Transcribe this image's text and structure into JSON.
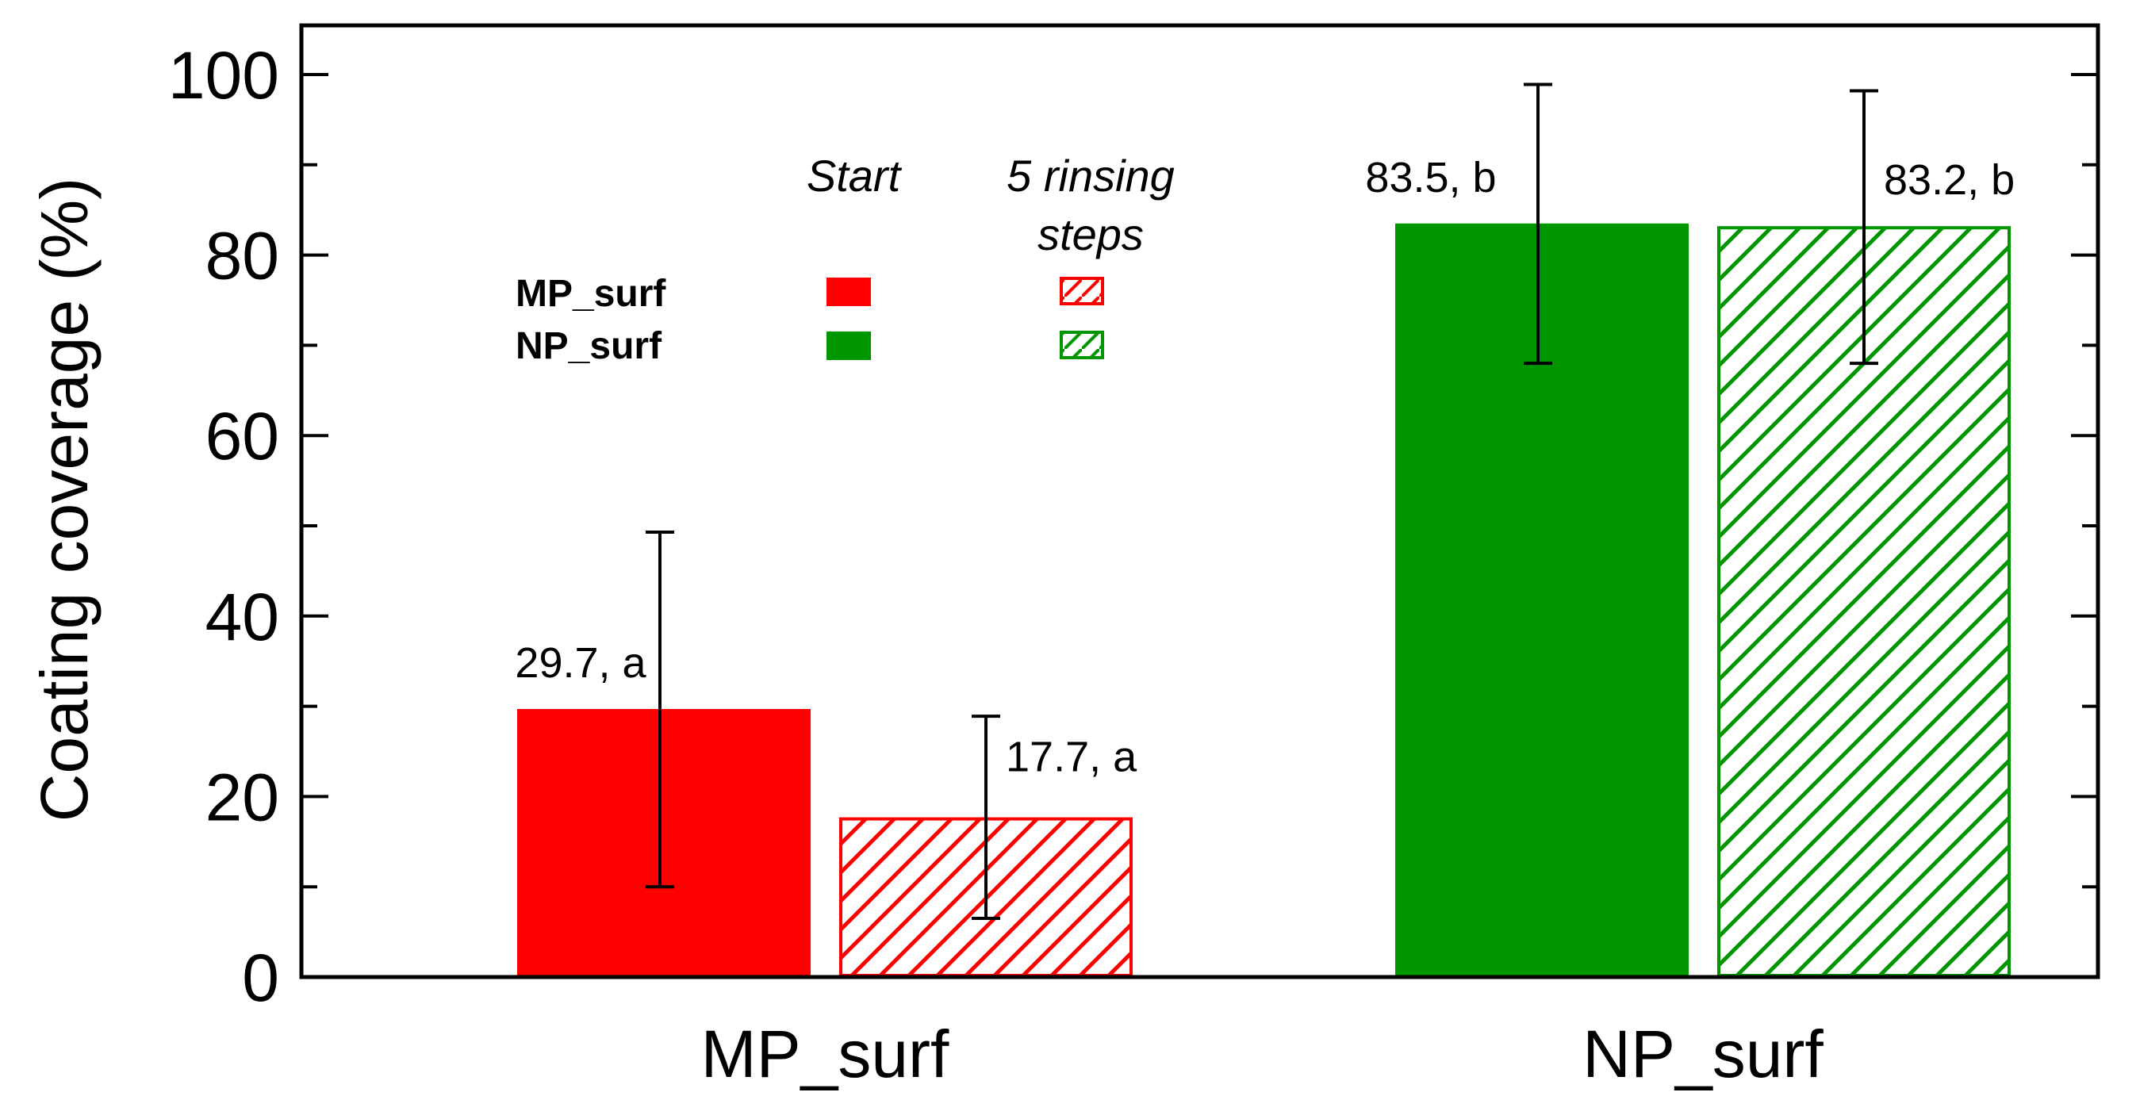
{
  "chart_data": {
    "type": "bar",
    "ylabel": "Coating coverage (%)",
    "ylim": [
      0,
      100
    ],
    "yticks": [
      "0",
      "20",
      "40",
      "60",
      "80",
      "100"
    ],
    "categories": [
      "MP_surf",
      "NP_surf"
    ],
    "series": [
      {
        "name": "Start",
        "fill": "solid",
        "values": [
          29.7,
          83.5
        ],
        "error_low": [
          10.0,
          68.0
        ],
        "error_high": [
          49.3,
          98.9
        ],
        "labels": [
          "29.7, a",
          "83.5, b"
        ]
      },
      {
        "name": "5 rinsing steps",
        "fill": "hatched",
        "values": [
          17.7,
          83.2
        ],
        "error_low": [
          6.5,
          68.0
        ],
        "error_high": [
          28.9,
          98.2
        ],
        "labels": [
          "17.7, a",
          "83.2, b"
        ]
      }
    ],
    "legend": {
      "placement": "top-left",
      "col_header_start": "Start",
      "col_header_rinse_line1": "5 rinsing",
      "col_header_rinse_line2": "steps",
      "rows": [
        "MP_surf",
        "NP_surf"
      ]
    },
    "colors": {
      "MP_surf": "#ff0000",
      "NP_surf": "#009600",
      "axis": "#000000",
      "error_bar": "#000000"
    },
    "grid": false
  }
}
